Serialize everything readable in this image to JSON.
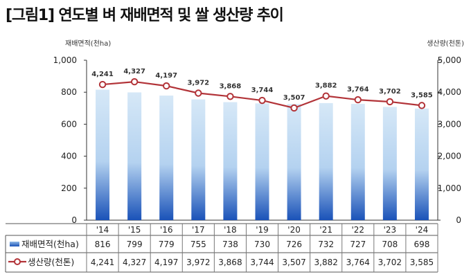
{
  "title": "[그림1] 연도별 벼 재배면적 및 쌀 생산량 추이",
  "colors": {
    "bar_top": "#d6e8f7",
    "bar_bottom": "#1a52b8",
    "line": "#b23338"
  },
  "chart_data": {
    "type": "bar+line",
    "categories": [
      "'14",
      "'15",
      "'16",
      "'17",
      "'18",
      "'19",
      "'20",
      "'21",
      "'22",
      "'23",
      "'24"
    ],
    "series": [
      {
        "name": "재배면적(천ha)",
        "type": "bar",
        "axis": "left",
        "values": [
          816,
          799,
          779,
          755,
          738,
          730,
          726,
          732,
          727,
          708,
          698
        ],
        "labels": [
          "816",
          "799",
          "779",
          "755",
          "738",
          "730",
          "726",
          "732",
          "727",
          "708",
          "698"
        ]
      },
      {
        "name": "생산량(천톤)",
        "type": "line",
        "axis": "right",
        "values": [
          4241,
          4327,
          4197,
          3972,
          3868,
          3744,
          3507,
          3882,
          3764,
          3702,
          3585
        ],
        "labels": [
          "4,241",
          "4,327",
          "4,197",
          "3,972",
          "3,868",
          "3,744",
          "3,507",
          "3,882",
          "3,764",
          "3,702",
          "3,585"
        ]
      }
    ],
    "left_axis": {
      "label": "재배면적(천ha)",
      "ylim": [
        0,
        1000
      ],
      "ticks": [
        0,
        200,
        400,
        600,
        800,
        1000
      ],
      "tick_labels": [
        "0",
        "200",
        "400",
        "600",
        "800",
        "1,000"
      ]
    },
    "right_axis": {
      "label": "생산량(천톤)",
      "ylim": [
        0,
        5000
      ],
      "ticks": [
        0,
        1000,
        2000,
        3000,
        4000,
        5000
      ],
      "tick_labels": [
        "0",
        "1,000",
        "2,000",
        "3,000",
        "4,000",
        "5,000"
      ]
    },
    "grid": false,
    "legend": "data-table-below"
  }
}
